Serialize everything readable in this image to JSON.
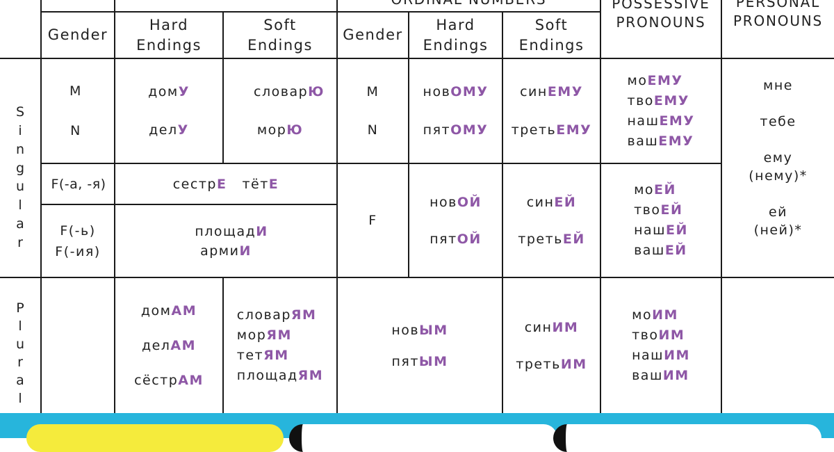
{
  "header": {
    "ordinal_title": "ORDINAL NUMBERS",
    "possessive_title": "POSSESSIVE PRONOUNS",
    "personal_title": "PERSONAL PRONOUNS",
    "gender": "Gender",
    "hard_endings": "Hard Endings",
    "soft_endings": "Soft Endings"
  },
  "side_labels": {
    "singular": "Singular",
    "plural": "Plural"
  },
  "singular_mn": {
    "genders": [
      "M",
      "N"
    ],
    "noun_hard": [
      [
        "дом",
        "У"
      ],
      [
        "дел",
        "У"
      ]
    ],
    "noun_soft": [
      [
        "словар",
        "Ю"
      ],
      [
        "мор",
        "Ю"
      ]
    ],
    "ord_genders": [
      "M",
      "N"
    ],
    "ord_hard": [
      [
        "нов",
        "ОМУ"
      ],
      [
        "пят",
        "ОМУ"
      ]
    ],
    "ord_soft": [
      [
        "син",
        "ЕМУ"
      ],
      [
        "треть",
        "ЕМУ"
      ]
    ],
    "possessive": [
      [
        "мо",
        "ЕМУ"
      ],
      [
        "тво",
        "ЕМУ"
      ],
      [
        "наш",
        "ЕМУ"
      ],
      [
        "ваш",
        "ЕМУ"
      ]
    ]
  },
  "singular_f": {
    "gender_a": "F(-а, -я)",
    "nouns_a": [
      [
        "сестр",
        "Е"
      ],
      [
        "тёт",
        "Е"
      ]
    ],
    "gender_soft_1": "F(-ь)",
    "gender_soft_2": "F(-ия)",
    "nouns_soft": [
      [
        "площад",
        "И"
      ],
      [
        "арми",
        "И"
      ]
    ],
    "ord_gender": "F",
    "ord_hard": [
      [
        "нов",
        "ОЙ"
      ],
      [
        "пят",
        "ОЙ"
      ]
    ],
    "ord_soft": [
      [
        "син",
        "ЕЙ"
      ],
      [
        "треть",
        "ЕЙ"
      ]
    ],
    "possessive": [
      [
        "мо",
        "ЕЙ"
      ],
      [
        "тво",
        "ЕЙ"
      ],
      [
        "наш",
        "ЕЙ"
      ],
      [
        "ваш",
        "ЕЙ"
      ]
    ]
  },
  "personal": [
    "мне",
    "тебе",
    "ему",
    "(нему)*",
    "ей",
    "(ней)*"
  ],
  "plural": {
    "noun_hard": [
      [
        "дом",
        "АМ"
      ],
      [
        "дел",
        "АМ"
      ],
      [
        "сёстр",
        "АМ"
      ]
    ],
    "noun_soft": [
      [
        "словар",
        "ЯМ"
      ],
      [
        "мор",
        "ЯМ"
      ],
      [
        "тет",
        "ЯМ"
      ],
      [
        "площад",
        "ЯМ"
      ]
    ],
    "ord_hard": [
      [
        "нов",
        "ЫМ"
      ],
      [
        "пят",
        "ЫМ"
      ]
    ],
    "ord_soft": [
      [
        "син",
        "ИМ"
      ],
      [
        "треть",
        "ИМ"
      ]
    ],
    "possessive": [
      [
        "мо",
        "ИМ"
      ],
      [
        "тво",
        "ИМ"
      ],
      [
        "наш",
        "ИМ"
      ],
      [
        "ваш",
        "ИМ"
      ]
    ]
  },
  "colors": {
    "ending": "#8e57a6",
    "footer": "#27b5dc",
    "pill_yellow": "#f5eb3c",
    "pill_white": "#ffffff"
  }
}
